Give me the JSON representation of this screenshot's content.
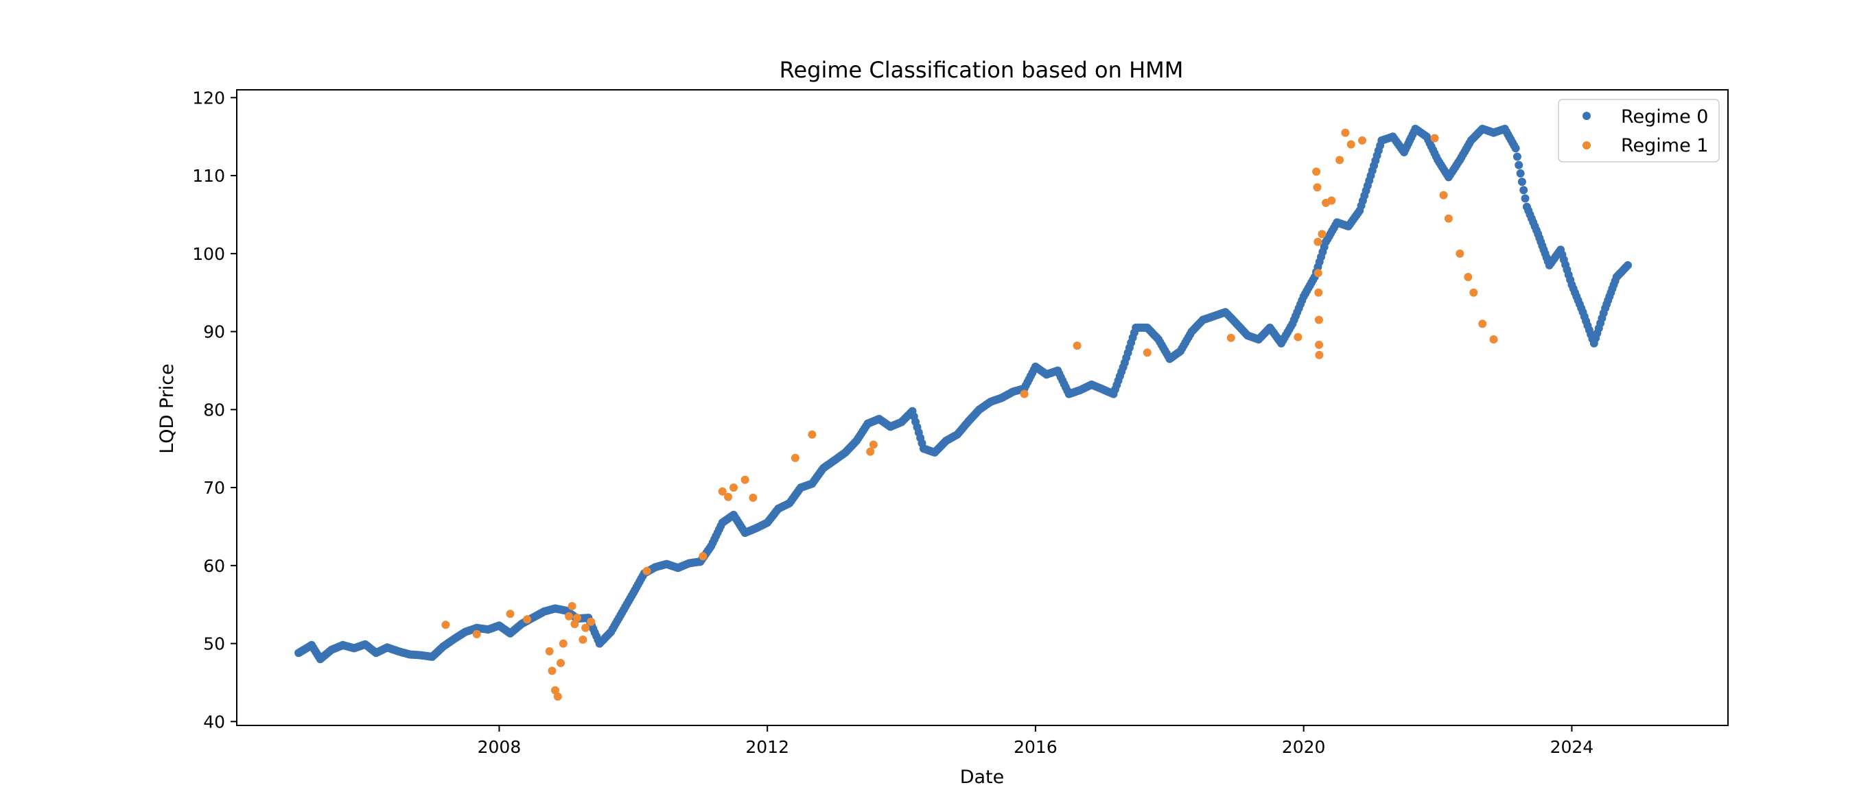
{
  "chart_data": {
    "type": "scatter",
    "title": "Regime Classification based on HMM",
    "xlabel": "Date",
    "ylabel": "LQD Price",
    "xlim": [
      "2004-02-01",
      "2026-05-01"
    ],
    "ylim": [
      39.5,
      121
    ],
    "x_ticks": [
      "2008-01-01",
      "2012-01-01",
      "2016-01-01",
      "2020-01-01",
      "2024-01-01"
    ],
    "x_tick_labels": [
      "2008",
      "2012",
      "2016",
      "2020",
      "2024"
    ],
    "y_ticks": [
      40,
      50,
      60,
      70,
      80,
      90,
      100,
      110,
      120
    ],
    "y_tick_labels": [
      "40",
      "50",
      "60",
      "70",
      "80",
      "90",
      "100",
      "110",
      "120"
    ],
    "grid": false,
    "legend_position": "top-right",
    "colors": {
      "regime_0": "#3a73b4",
      "regime_1": "#f08a33"
    },
    "series": [
      {
        "name": "Regime 0",
        "color": "#3a73b4",
        "points": [
          [
            "2005-01-03",
            48.8
          ],
          [
            "2005-03-15",
            49.8
          ],
          [
            "2005-05-01",
            48.0
          ],
          [
            "2005-07-01",
            49.2
          ],
          [
            "2005-09-01",
            49.8
          ],
          [
            "2005-11-01",
            49.4
          ],
          [
            "2006-01-01",
            49.9
          ],
          [
            "2006-03-01",
            48.8
          ],
          [
            "2006-05-01",
            49.5
          ],
          [
            "2006-07-01",
            49.0
          ],
          [
            "2006-09-01",
            48.6
          ],
          [
            "2006-11-01",
            48.5
          ],
          [
            "2007-01-01",
            48.3
          ],
          [
            "2007-03-01",
            49.6
          ],
          [
            "2007-05-01",
            50.6
          ],
          [
            "2007-07-01",
            51.5
          ],
          [
            "2007-09-01",
            52.0
          ],
          [
            "2007-11-01",
            51.8
          ],
          [
            "2008-01-01",
            52.3
          ],
          [
            "2008-03-01",
            51.3
          ],
          [
            "2008-05-01",
            52.5
          ],
          [
            "2008-07-01",
            53.3
          ],
          [
            "2008-09-01",
            54.1
          ],
          [
            "2008-11-01",
            54.5
          ],
          [
            "2009-01-01",
            54.2
          ],
          [
            "2009-03-01",
            53.2
          ],
          [
            "2009-05-01",
            53.3
          ],
          [
            "2009-07-01",
            50.0
          ],
          [
            "2009-09-01",
            51.5
          ],
          [
            "2009-11-01",
            54.0
          ],
          [
            "2010-01-01",
            56.5
          ],
          [
            "2010-03-01",
            59.0
          ],
          [
            "2010-05-01",
            59.8
          ],
          [
            "2010-07-01",
            60.2
          ],
          [
            "2010-09-01",
            59.7
          ],
          [
            "2010-11-01",
            60.3
          ],
          [
            "2011-01-01",
            60.5
          ],
          [
            "2011-03-01",
            62.5
          ],
          [
            "2011-05-01",
            65.5
          ],
          [
            "2011-07-01",
            66.5
          ],
          [
            "2011-09-01",
            64.2
          ],
          [
            "2011-11-01",
            64.8
          ],
          [
            "2012-01-01",
            65.5
          ],
          [
            "2012-03-01",
            67.3
          ],
          [
            "2012-05-01",
            68.0
          ],
          [
            "2012-07-01",
            70.0
          ],
          [
            "2012-09-01",
            70.5
          ],
          [
            "2012-11-01",
            72.5
          ],
          [
            "2013-01-01",
            73.5
          ],
          [
            "2013-03-01",
            74.5
          ],
          [
            "2013-05-01",
            76.0
          ],
          [
            "2013-07-01",
            78.2
          ],
          [
            "2013-09-01",
            78.8
          ],
          [
            "2013-11-01",
            77.8
          ],
          [
            "2014-01-01",
            78.4
          ],
          [
            "2014-03-01",
            79.8
          ],
          [
            "2014-05-01",
            75.0
          ],
          [
            "2014-07-01",
            74.5
          ],
          [
            "2014-09-01",
            76.0
          ],
          [
            "2014-11-01",
            76.8
          ],
          [
            "2015-01-01",
            78.5
          ],
          [
            "2015-03-01",
            80.0
          ],
          [
            "2015-05-01",
            81.0
          ],
          [
            "2015-07-01",
            81.5
          ],
          [
            "2015-09-01",
            82.3
          ],
          [
            "2015-11-01",
            82.7
          ],
          [
            "2016-01-01",
            85.5
          ],
          [
            "2016-03-01",
            84.5
          ],
          [
            "2016-05-01",
            85.0
          ],
          [
            "2016-07-01",
            82.0
          ],
          [
            "2016-09-01",
            82.5
          ],
          [
            "2016-11-01",
            83.2
          ],
          [
            "2017-01-01",
            82.6
          ],
          [
            "2017-03-01",
            82.0
          ],
          [
            "2017-05-01",
            86.0
          ],
          [
            "2017-07-01",
            90.5
          ],
          [
            "2017-09-01",
            90.5
          ],
          [
            "2017-11-01",
            89.0
          ],
          [
            "2018-01-01",
            86.5
          ],
          [
            "2018-03-01",
            87.5
          ],
          [
            "2018-05-01",
            90.0
          ],
          [
            "2018-07-01",
            91.5
          ],
          [
            "2018-09-01",
            92.0
          ],
          [
            "2018-11-01",
            92.5
          ],
          [
            "2019-01-01",
            91.0
          ],
          [
            "2019-03-01",
            89.5
          ],
          [
            "2019-05-01",
            89.0
          ],
          [
            "2019-07-01",
            90.5
          ],
          [
            "2019-09-01",
            88.5
          ],
          [
            "2019-11-01",
            91.0
          ],
          [
            "2020-01-01",
            94.5
          ],
          [
            "2020-03-01",
            97.0
          ],
          [
            "2020-05-01",
            101.5
          ],
          [
            "2020-07-01",
            104.0
          ],
          [
            "2020-09-01",
            103.5
          ],
          [
            "2020-11-01",
            105.5
          ],
          [
            "2021-01-01",
            110.0
          ],
          [
            "2021-03-01",
            114.5
          ],
          [
            "2021-05-01",
            115.0
          ],
          [
            "2021-07-01",
            113.0
          ],
          [
            "2021-09-01",
            116.0
          ],
          [
            "2021-11-01",
            115.0
          ],
          [
            "2022-01-01",
            112.0
          ],
          [
            "2022-03-01",
            109.8
          ],
          [
            "2022-05-01",
            112.0
          ],
          [
            "2022-07-01",
            114.5
          ],
          [
            "2022-09-01",
            116.0
          ],
          [
            "2022-11-01",
            115.5
          ],
          [
            "2023-01-01",
            116.0
          ],
          [
            "2023-03-01",
            113.5
          ],
          [
            "2023-05-01",
            106.0
          ],
          [
            "2023-07-01",
            102.5
          ],
          [
            "2023-09-01",
            98.5
          ],
          [
            "2023-11-01",
            100.5
          ],
          [
            "2024-01-01",
            96.0
          ],
          [
            "2024-03-01",
            92.5
          ],
          [
            "2024-05-01",
            88.5
          ],
          [
            "2024-07-01",
            93.0
          ],
          [
            "2024-09-01",
            97.0
          ],
          [
            "2024-11-01",
            98.5
          ]
        ]
      },
      {
        "name": "Regime 1",
        "color": "#f08a33",
        "points": [
          [
            "2007-03-15",
            52.4
          ],
          [
            "2007-09-01",
            51.2
          ],
          [
            "2008-03-01",
            53.8
          ],
          [
            "2008-06-01",
            53.1
          ],
          [
            "2008-10-01",
            49.0
          ],
          [
            "2008-10-15",
            46.5
          ],
          [
            "2008-11-01",
            44.0
          ],
          [
            "2008-11-15",
            43.2
          ],
          [
            "2008-12-01",
            47.5
          ],
          [
            "2008-12-15",
            50.0
          ],
          [
            "2009-01-15",
            53.5
          ],
          [
            "2009-02-01",
            54.8
          ],
          [
            "2009-02-15",
            52.5
          ],
          [
            "2009-03-01",
            53.3
          ],
          [
            "2009-04-01",
            50.5
          ],
          [
            "2009-04-15",
            52.0
          ],
          [
            "2009-05-15",
            52.8
          ],
          [
            "2010-03-15",
            59.3
          ],
          [
            "2011-01-15",
            61.2
          ],
          [
            "2011-05-01",
            69.5
          ],
          [
            "2011-06-01",
            68.8
          ],
          [
            "2011-07-01",
            70.0
          ],
          [
            "2011-09-01",
            71.0
          ],
          [
            "2011-10-15",
            68.7
          ],
          [
            "2012-06-01",
            73.8
          ],
          [
            "2012-09-01",
            76.8
          ],
          [
            "2013-07-15",
            74.6
          ],
          [
            "2013-08-01",
            75.5
          ],
          [
            "2015-11-01",
            82.0
          ],
          [
            "2016-08-15",
            88.2
          ],
          [
            "2017-09-01",
            87.3
          ],
          [
            "2018-12-01",
            89.2
          ],
          [
            "2019-12-01",
            89.3
          ],
          [
            "2020-03-10",
            110.5
          ],
          [
            "2020-03-15",
            108.5
          ],
          [
            "2020-03-18",
            101.5
          ],
          [
            "2020-03-20",
            97.5
          ],
          [
            "2020-03-22",
            95.0
          ],
          [
            "2020-03-24",
            91.5
          ],
          [
            "2020-03-25",
            88.3
          ],
          [
            "2020-03-26",
            87.0
          ],
          [
            "2020-04-10",
            102.5
          ],
          [
            "2020-05-01",
            106.5
          ],
          [
            "2020-06-01",
            106.8
          ],
          [
            "2020-07-15",
            112.0
          ],
          [
            "2020-08-15",
            115.5
          ],
          [
            "2020-09-15",
            114.0
          ],
          [
            "2020-11-15",
            114.5
          ],
          [
            "2021-12-15",
            114.8
          ],
          [
            "2022-02-01",
            107.5
          ],
          [
            "2022-03-01",
            104.5
          ],
          [
            "2022-05-01",
            100.0
          ],
          [
            "2022-06-15",
            97.0
          ],
          [
            "2022-07-15",
            95.0
          ],
          [
            "2022-09-01",
            91.0
          ],
          [
            "2022-11-01",
            89.0
          ]
        ]
      }
    ]
  }
}
